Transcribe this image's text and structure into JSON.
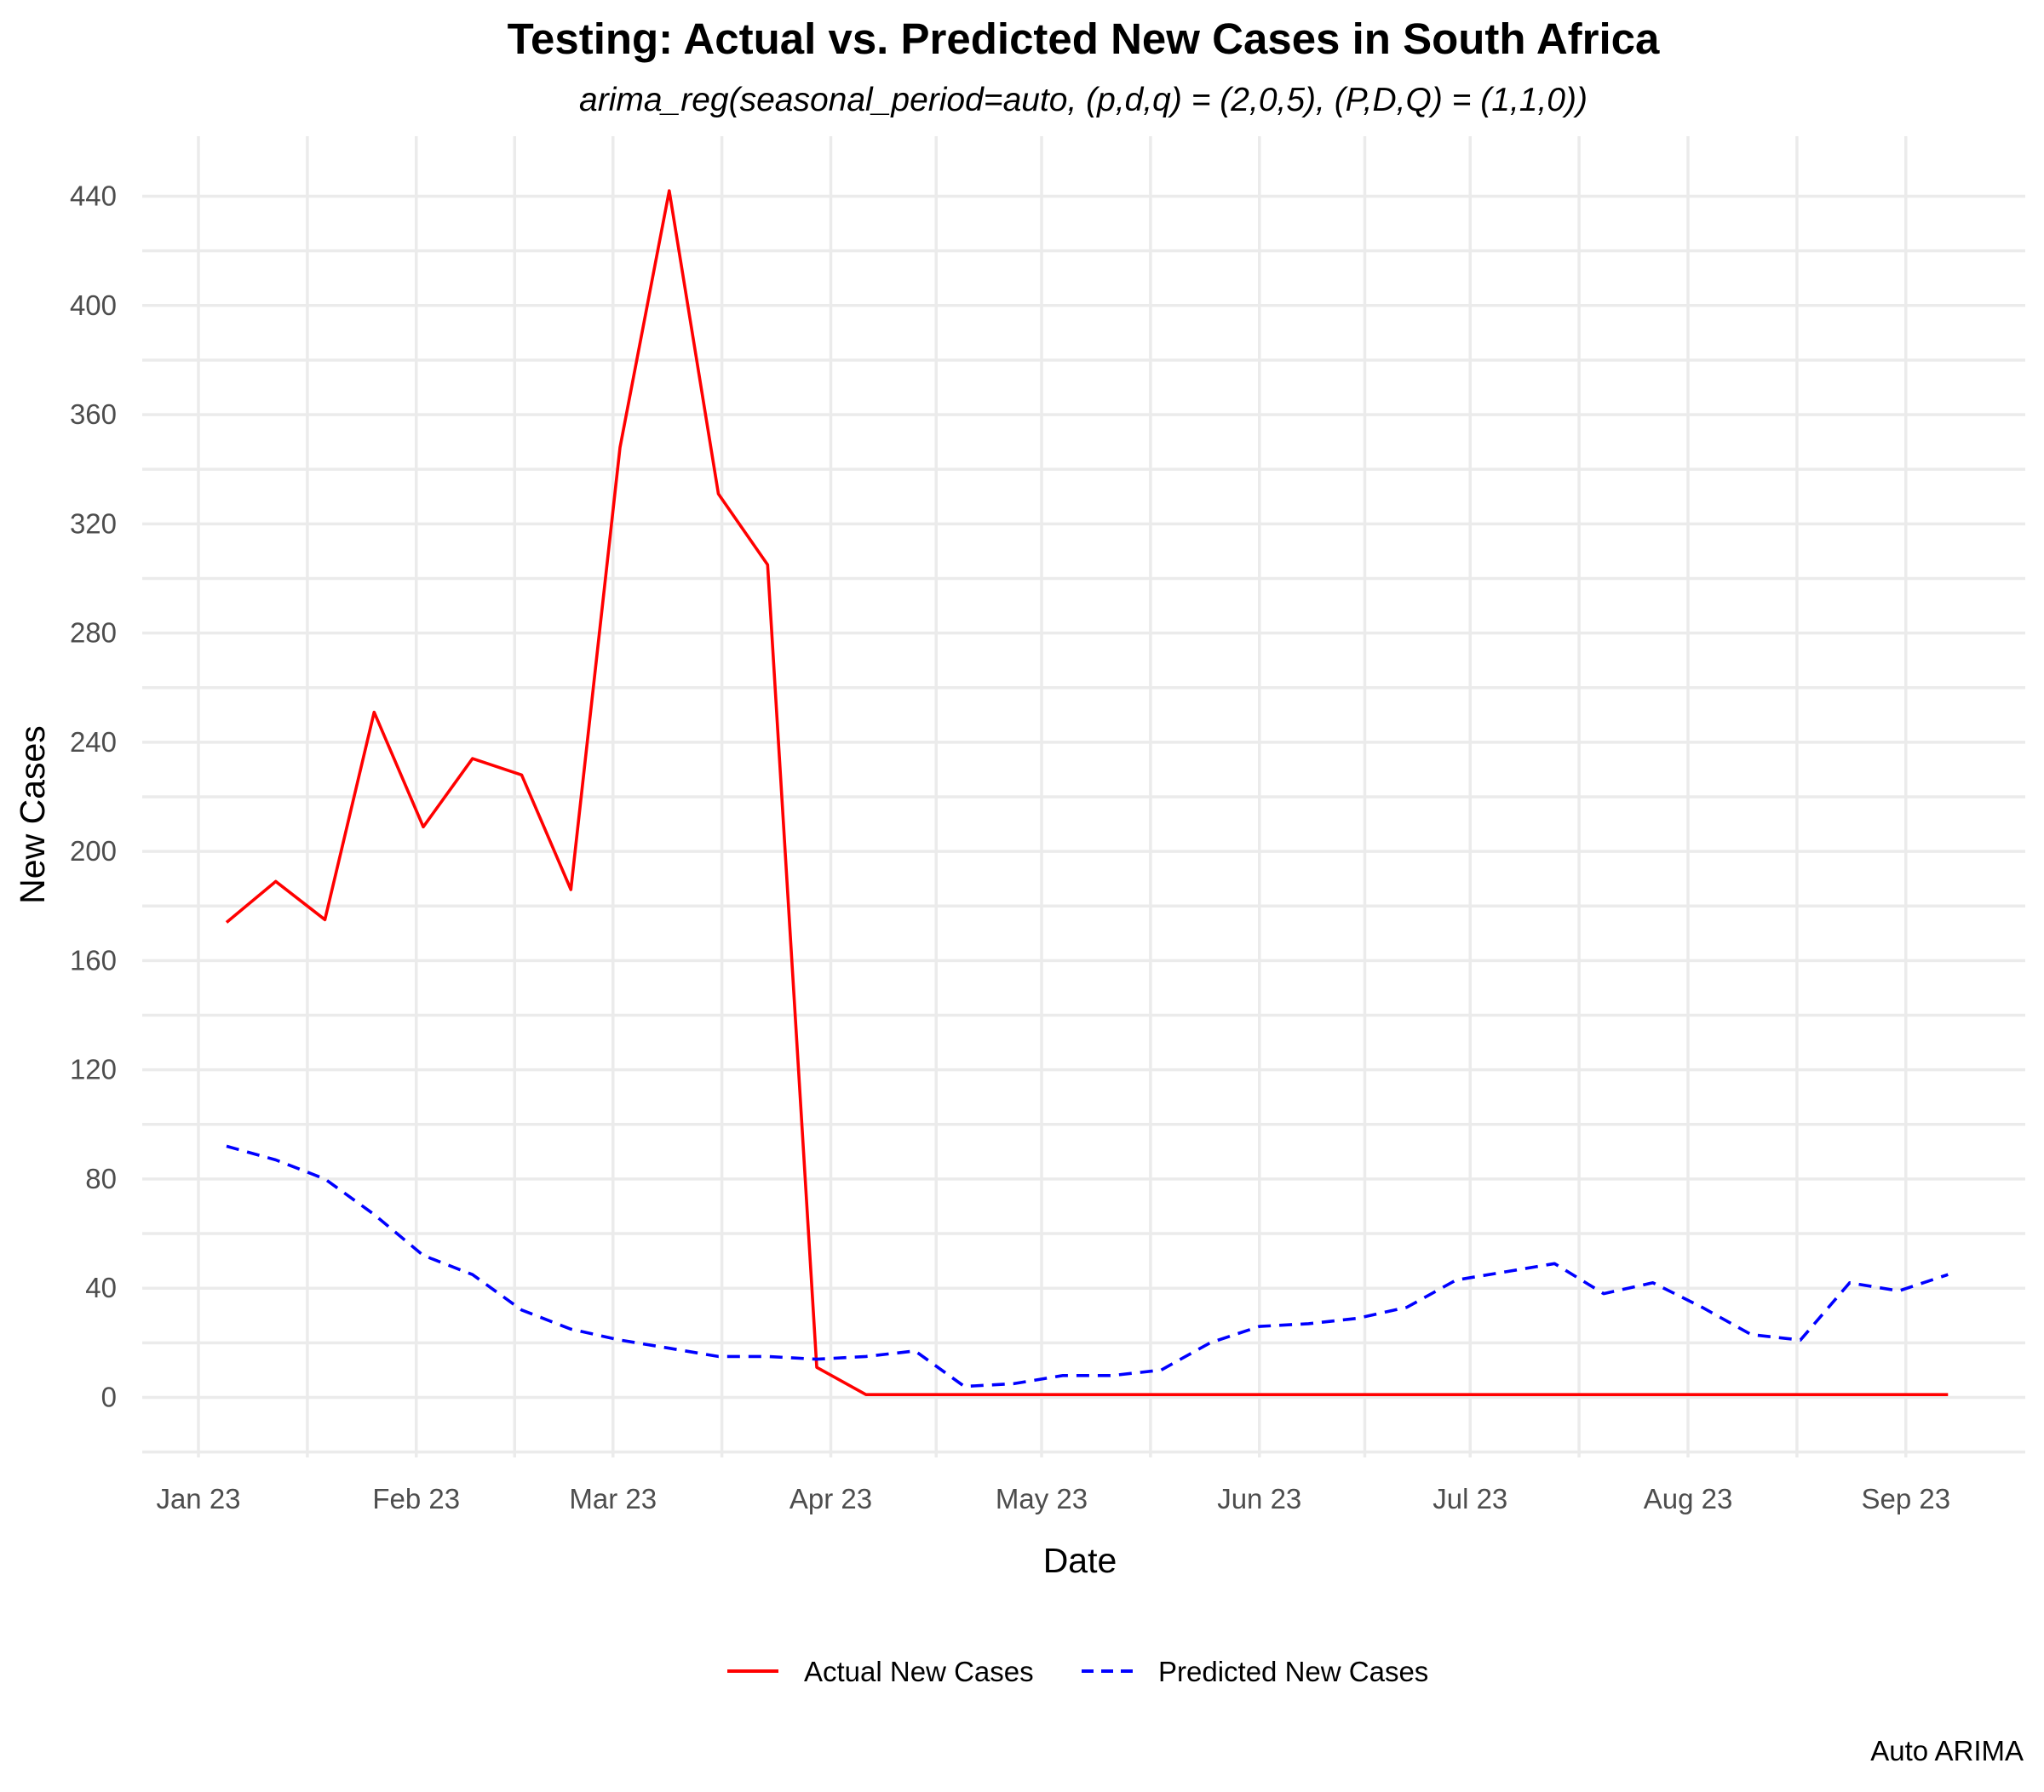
{
  "chart_data": {
    "type": "line",
    "title": "Testing: Actual vs. Predicted New Cases in South Africa",
    "subtitle": "arima_reg(seasonal_period=auto, (p,d,q) = (2,0,5), (P,D,Q) = (1,1,0))",
    "xlabel": "Date",
    "ylabel": "New Cases",
    "caption": "Auto ARIMA",
    "x_axis": {
      "type": "date",
      "range": [
        "2022-12-24",
        "2023-09-18"
      ],
      "ticks": [
        {
          "date": "2023-01-01",
          "label": "Jan 23"
        },
        {
          "date": "2023-02-01",
          "label": "Feb 23"
        },
        {
          "date": "2023-03-01",
          "label": "Mar 23"
        },
        {
          "date": "2023-04-01",
          "label": "Apr 23"
        },
        {
          "date": "2023-05-01",
          "label": "May 23"
        },
        {
          "date": "2023-06-01",
          "label": "Jun 23"
        },
        {
          "date": "2023-07-01",
          "label": "Jul 23"
        },
        {
          "date": "2023-08-01",
          "label": "Aug 23"
        },
        {
          "date": "2023-09-01",
          "label": "Sep 23"
        }
      ]
    },
    "y_axis": {
      "range": [
        -22,
        462
      ],
      "ticks": [
        0,
        40,
        80,
        120,
        160,
        200,
        240,
        280,
        320,
        360,
        400,
        440
      ]
    },
    "grid": true,
    "legend_position": "bottom",
    "x": [
      "2023-01-05",
      "2023-01-12",
      "2023-01-19",
      "2023-01-26",
      "2023-02-02",
      "2023-02-09",
      "2023-02-16",
      "2023-02-23",
      "2023-03-02",
      "2023-03-09",
      "2023-03-16",
      "2023-03-23",
      "2023-03-30",
      "2023-04-06",
      "2023-04-13",
      "2023-04-20",
      "2023-04-27",
      "2023-05-04",
      "2023-05-11",
      "2023-05-18",
      "2023-05-25",
      "2023-06-01",
      "2023-06-08",
      "2023-06-15",
      "2023-06-22",
      "2023-06-29",
      "2023-07-06",
      "2023-07-13",
      "2023-07-20",
      "2023-07-27",
      "2023-08-03",
      "2023-08-10",
      "2023-08-17",
      "2023-08-24",
      "2023-08-31",
      "2023-09-07"
    ],
    "series": [
      {
        "name": "Actual New Cases",
        "color": "#ff0000",
        "dash": "solid",
        "values": [
          174,
          189,
          175,
          251,
          209,
          234,
          228,
          186,
          348,
          442,
          331,
          305,
          11,
          1,
          1,
          1,
          1,
          1,
          1,
          1,
          1,
          1,
          1,
          1,
          1,
          1,
          1,
          1,
          1,
          1,
          1,
          1,
          1,
          1,
          1,
          1
        ]
      },
      {
        "name": "Predicted New Cases",
        "color": "#0000ff",
        "dash": "dashed",
        "values": [
          92,
          87,
          80,
          67,
          52,
          45,
          32,
          25,
          21,
          18,
          15,
          15,
          14,
          15,
          17,
          4,
          5,
          8,
          8,
          10,
          20,
          26,
          27,
          29,
          33,
          43,
          46,
          49,
          38,
          42,
          33,
          23,
          21,
          42,
          39,
          45
        ]
      }
    ]
  }
}
